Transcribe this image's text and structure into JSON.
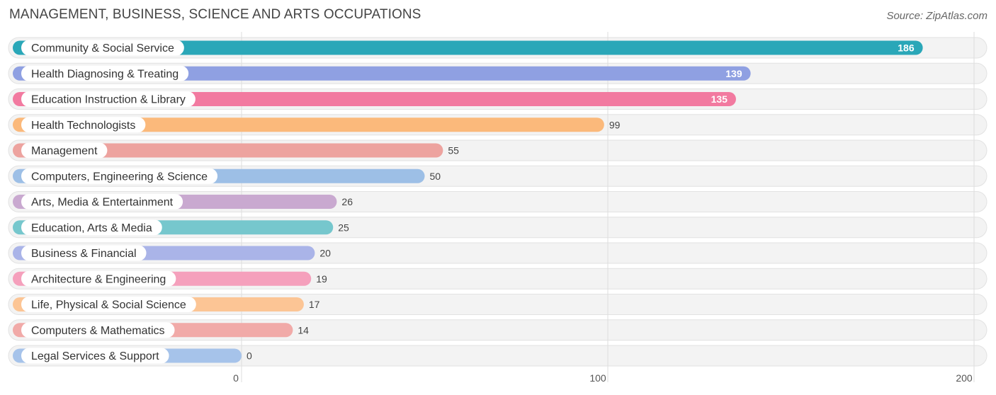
{
  "header": {
    "title": "MANAGEMENT, BUSINESS, SCIENCE AND ARTS OCCUPATIONS",
    "source": "Source: ZipAtlas.com"
  },
  "chart_data": {
    "type": "bar",
    "orientation": "horizontal",
    "title": "MANAGEMENT, BUSINESS, SCIENCE AND ARTS OCCUPATIONS",
    "xlabel": "",
    "ylabel": "",
    "xlim": [
      0,
      200
    ],
    "ticks": [
      0,
      100,
      200
    ],
    "grid": true,
    "categories": [
      "Community & Social Service",
      "Health Diagnosing & Treating",
      "Education Instruction & Library",
      "Health Technologists",
      "Management",
      "Computers, Engineering & Science",
      "Arts, Media & Entertainment",
      "Education, Arts & Media",
      "Business & Financial",
      "Architecture & Engineering",
      "Life, Physical & Social Science",
      "Computers & Mathematics",
      "Legal Services & Support"
    ],
    "values": [
      186,
      139,
      135,
      99,
      55,
      50,
      26,
      25,
      20,
      19,
      17,
      14,
      0
    ],
    "value_labels": [
      "186",
      "139",
      "135",
      "99",
      "55",
      "50",
      "26",
      "25",
      "20",
      "19",
      "17",
      "14",
      "0"
    ],
    "colors": [
      "#2aa7b8",
      "#8fa0e2",
      "#f27aa0",
      "#fbb97b",
      "#eda39f",
      "#9dbfe6",
      "#c9a9d0",
      "#76c7cd",
      "#aab4e8",
      "#f5a0bc",
      "#fcc595",
      "#f1aaa8",
      "#a6c3ea"
    ],
    "value_label_inside": [
      true,
      true,
      true,
      false,
      false,
      false,
      false,
      false,
      false,
      false,
      false,
      false,
      false
    ]
  }
}
